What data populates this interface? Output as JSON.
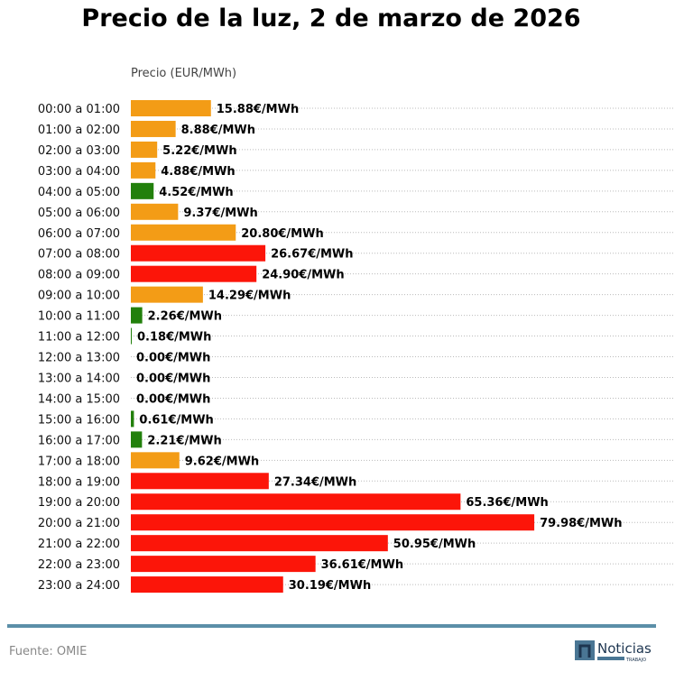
{
  "chart_data": {
    "type": "bar",
    "orientation": "horizontal",
    "title": "Precio de la luz, 2 de marzo de 2026",
    "xlabel": "Precio (EUR/MWh)",
    "categories": [
      "00:00 a 01:00",
      "01:00 a 02:00",
      "02:00 a 03:00",
      "03:00 a 04:00",
      "04:00 a 05:00",
      "05:00 a 06:00",
      "06:00 a 07:00",
      "07:00 a 08:00",
      "08:00 a 09:00",
      "09:00 a 10:00",
      "10:00 a 11:00",
      "11:00 a 12:00",
      "12:00 a 13:00",
      "13:00 a 14:00",
      "14:00 a 15:00",
      "15:00 a 16:00",
      "16:00 a 17:00",
      "17:00 a 18:00",
      "18:00 a 19:00",
      "19:00 a 20:00",
      "20:00 a 21:00",
      "21:00 a 22:00",
      "22:00 a 23:00",
      "23:00 a 24:00"
    ],
    "values": [
      15.88,
      8.88,
      5.22,
      4.88,
      4.52,
      9.37,
      20.8,
      26.67,
      24.9,
      14.29,
      2.26,
      0.18,
      0.0,
      0.0,
      0.0,
      0.61,
      2.21,
      9.62,
      27.34,
      65.36,
      79.98,
      50.95,
      36.61,
      30.19
    ],
    "levels": [
      "mid",
      "mid",
      "mid",
      "mid",
      "low",
      "mid",
      "mid",
      "high",
      "high",
      "mid",
      "low",
      "low",
      "low",
      "low",
      "low",
      "low",
      "low",
      "mid",
      "high",
      "high",
      "high",
      "high",
      "high",
      "high"
    ],
    "label_suffix": "€/MWh",
    "xlim": [
      0,
      108
    ],
    "grid": "horizontal dotted",
    "colors": {
      "low": "#22800c",
      "mid": "#f39c16",
      "high": "#fc1509"
    }
  },
  "footer": {
    "source": "Fuente: OMIE",
    "logo_text": "Noticias",
    "logo_sub": "TRABAJO"
  }
}
